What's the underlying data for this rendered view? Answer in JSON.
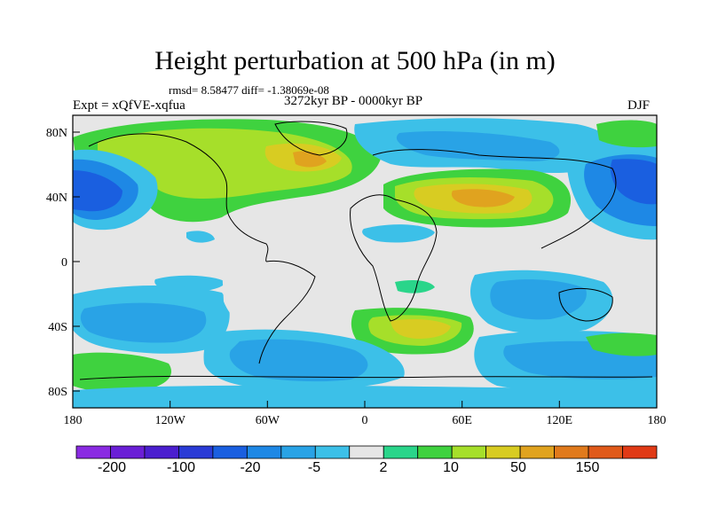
{
  "map": {
    "title": "Height perturbation at 500 hPa (in m)",
    "rmsd_line": "rmsd= 8.58477 diff= -1.38069e-08",
    "period": "3272kyr BP - 0000kyr BP",
    "experiment": "Expt = xQfVE-xqfua",
    "season": "DJF",
    "x_ticks": [
      "180",
      "120W",
      "60W",
      "0",
      "60E",
      "120E",
      "180"
    ],
    "y_ticks": [
      "80N",
      "40N",
      "0",
      "40S",
      "80S"
    ]
  },
  "colorbar": {
    "colors": [
      "#8a2be2",
      "#6a1fd6",
      "#4b1fcf",
      "#2a3bd6",
      "#1a5fe0",
      "#1e88e5",
      "#29a3e6",
      "#3cc0e8",
      "#e6e6e6",
      "#2ad58a",
      "#3fd23f",
      "#a6df2a",
      "#d8cc22",
      "#e0a31f",
      "#e07a1c",
      "#e05a1a",
      "#e03a16"
    ],
    "labels": [
      "-200",
      "-100",
      "-20",
      "-5",
      "2",
      "10",
      "50",
      "150"
    ]
  },
  "field_colors": {
    "neutral": "#e6e6e6",
    "light_blue": "#3cc0e8",
    "mid_blue": "#29a3e6",
    "blue": "#1e88e5",
    "dark_blue": "#1a5fe0",
    "teal_green": "#2ad58a",
    "green": "#3fd23f",
    "yellow_green": "#a6df2a",
    "yellow": "#d8cc22",
    "orange": "#e0a31f"
  }
}
